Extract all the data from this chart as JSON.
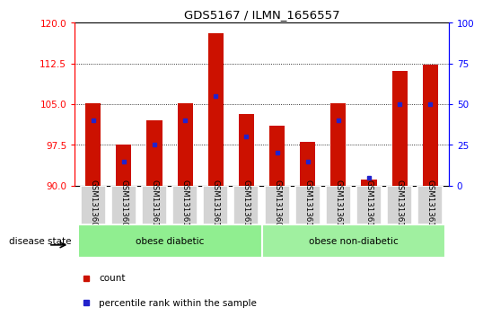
{
  "title": "GDS5167 / ILMN_1656557",
  "samples": [
    "GSM1313607",
    "GSM1313609",
    "GSM1313610",
    "GSM1313611",
    "GSM1313616",
    "GSM1313618",
    "GSM1313608",
    "GSM1313612",
    "GSM1313613",
    "GSM1313614",
    "GSM1313615",
    "GSM1313617"
  ],
  "count_values": [
    105.2,
    97.5,
    102.0,
    105.2,
    118.0,
    103.2,
    101.0,
    98.0,
    105.2,
    91.2,
    111.2,
    112.2
  ],
  "percentile_values": [
    40,
    15,
    25,
    40,
    55,
    30,
    20,
    15,
    40,
    5,
    50,
    50
  ],
  "ymin": 90,
  "ymax": 120,
  "yticks": [
    90,
    97.5,
    105,
    112.5,
    120
  ],
  "y2ticks": [
    0,
    25,
    50,
    75,
    100
  ],
  "bar_color": "#cc1100",
  "percentile_color": "#2222cc",
  "group1_label": "obese diabetic",
  "group2_label": "obese non-diabetic",
  "group1_count": 6,
  "group2_count": 6,
  "group_bg_color1": "#90ee90",
  "group_bg_color2": "#a0f0a0",
  "legend_count_label": "count",
  "legend_percentile_label": "percentile rank within the sample",
  "disease_state_label": "disease state",
  "bar_width": 0.5
}
